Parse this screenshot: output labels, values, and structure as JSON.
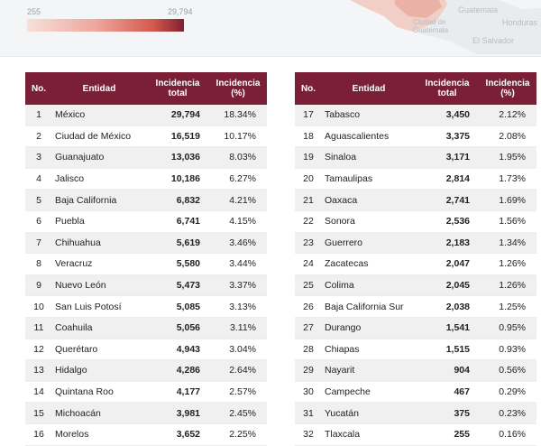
{
  "legend": {
    "min": "255",
    "max": "29,794"
  },
  "map_labels": [
    "Guatemala",
    "Ciudad de Guatemala",
    "Honduras",
    "El Salvador"
  ],
  "headers": {
    "no": "No.",
    "entidad": "Entidad",
    "total_line1": "Incidencia",
    "total_line2": "total",
    "pct_line1": "Incidencia",
    "pct_line2": "(%)"
  },
  "left_rows": [
    {
      "no": "1",
      "entidad": "México",
      "total": "29,794",
      "pct": "18.34%"
    },
    {
      "no": "2",
      "entidad": "Ciudad de México",
      "total": "16,519",
      "pct": "10.17%"
    },
    {
      "no": "3",
      "entidad": "Guanajuato",
      "total": "13,036",
      "pct": "8.03%"
    },
    {
      "no": "4",
      "entidad": "Jalisco",
      "total": "10,186",
      "pct": "6.27%"
    },
    {
      "no": "5",
      "entidad": "Baja California",
      "total": "6,832",
      "pct": "4.21%"
    },
    {
      "no": "6",
      "entidad": "Puebla",
      "total": "6,741",
      "pct": "4.15%"
    },
    {
      "no": "7",
      "entidad": "Chihuahua",
      "total": "5,619",
      "pct": "3.46%"
    },
    {
      "no": "8",
      "entidad": "Veracruz",
      "total": "5,580",
      "pct": "3.44%"
    },
    {
      "no": "9",
      "entidad": "Nuevo León",
      "total": "5,473",
      "pct": "3.37%"
    },
    {
      "no": "10",
      "entidad": "San Luis Potosí",
      "total": "5,085",
      "pct": "3.13%"
    },
    {
      "no": "11",
      "entidad": "Coahuila",
      "total": "5,056",
      "pct": "3.11%"
    },
    {
      "no": "12",
      "entidad": "Querétaro",
      "total": "4,943",
      "pct": "3.04%"
    },
    {
      "no": "13",
      "entidad": "Hidalgo",
      "total": "4,286",
      "pct": "2.64%"
    },
    {
      "no": "14",
      "entidad": "Quintana Roo",
      "total": "4,177",
      "pct": "2.57%"
    },
    {
      "no": "15",
      "entidad": "Michoacán",
      "total": "3,981",
      "pct": "2.45%"
    },
    {
      "no": "16",
      "entidad": "Morelos",
      "total": "3,652",
      "pct": "2.25%"
    }
  ],
  "right_rows": [
    {
      "no": "17",
      "entidad": "Tabasco",
      "total": "3,450",
      "pct": "2.12%"
    },
    {
      "no": "18",
      "entidad": "Aguascalientes",
      "total": "3,375",
      "pct": "2.08%"
    },
    {
      "no": "19",
      "entidad": "Sinaloa",
      "total": "3,171",
      "pct": "1.95%"
    },
    {
      "no": "20",
      "entidad": "Tamaulipas",
      "total": "2,814",
      "pct": "1.73%"
    },
    {
      "no": "21",
      "entidad": "Oaxaca",
      "total": "2,741",
      "pct": "1.69%"
    },
    {
      "no": "22",
      "entidad": "Sonora",
      "total": "2,536",
      "pct": "1.56%"
    },
    {
      "no": "23",
      "entidad": "Guerrero",
      "total": "2,183",
      "pct": "1.34%"
    },
    {
      "no": "24",
      "entidad": "Zacatecas",
      "total": "2,047",
      "pct": "1.26%"
    },
    {
      "no": "25",
      "entidad": "Colima",
      "total": "2,045",
      "pct": "1.26%"
    },
    {
      "no": "26",
      "entidad": "Baja California Sur",
      "total": "2,038",
      "pct": "1.25%"
    },
    {
      "no": "27",
      "entidad": "Durango",
      "total": "1,541",
      "pct": "0.95%"
    },
    {
      "no": "28",
      "entidad": "Chiapas",
      "total": "1,515",
      "pct": "0.93%"
    },
    {
      "no": "29",
      "entidad": "Nayarit",
      "total": "904",
      "pct": "0.56%"
    },
    {
      "no": "30",
      "entidad": "Campeche",
      "total": "467",
      "pct": "0.29%"
    },
    {
      "no": "31",
      "entidad": "Yucatán",
      "total": "375",
      "pct": "0.23%"
    },
    {
      "no": "32",
      "entidad": "Tlaxcala",
      "total": "255",
      "pct": "0.16%"
    }
  ]
}
